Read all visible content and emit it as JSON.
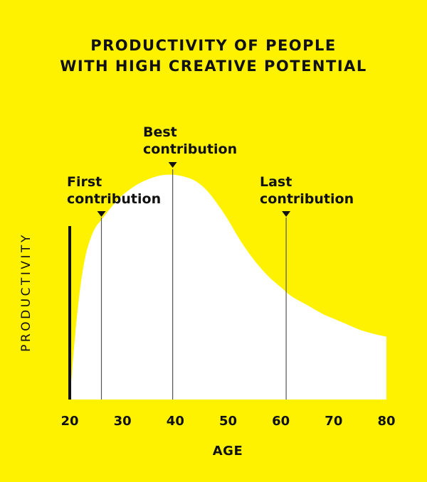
{
  "chart_data": {
    "type": "area",
    "title_lines": [
      "PRODUCTIVITY OF PEOPLE",
      "WITH HIGH CREATIVE POTENTIAL"
    ],
    "xlabel": "AGE",
    "ylabel": "PRODUCTIVITY",
    "xlim": [
      20,
      80
    ],
    "ylim": [
      0,
      1
    ],
    "x_ticks": [
      20,
      30,
      40,
      50,
      60,
      70,
      80
    ],
    "grid": false,
    "series": [
      {
        "x": [
          20,
          21,
          22,
          23,
          24,
          25,
          26,
          28,
          30,
          33,
          36,
          38,
          40,
          42,
          44,
          46,
          48,
          50,
          52,
          54,
          56,
          58,
          60,
          62,
          65,
          68,
          70,
          72,
          75,
          78,
          80
        ],
        "y": [
          0.0,
          0.28,
          0.5,
          0.64,
          0.72,
          0.77,
          0.8,
          0.86,
          0.91,
          0.96,
          0.99,
          1.0,
          1.0,
          0.99,
          0.97,
          0.93,
          0.87,
          0.8,
          0.72,
          0.65,
          0.59,
          0.54,
          0.5,
          0.46,
          0.42,
          0.38,
          0.36,
          0.34,
          0.31,
          0.29,
          0.28
        ]
      }
    ],
    "annotations": [
      {
        "x": 26,
        "lines": [
          "First",
          "contribution"
        ]
      },
      {
        "x": 39.5,
        "lines": [
          "Best",
          "contribution"
        ]
      },
      {
        "x": 61,
        "lines": [
          "Last",
          "contribution"
        ]
      }
    ],
    "colors": {
      "background": "#fff200",
      "area": "#ffffff",
      "text": "#111111",
      "axis": "#111111",
      "marker_line": "#555555"
    }
  }
}
